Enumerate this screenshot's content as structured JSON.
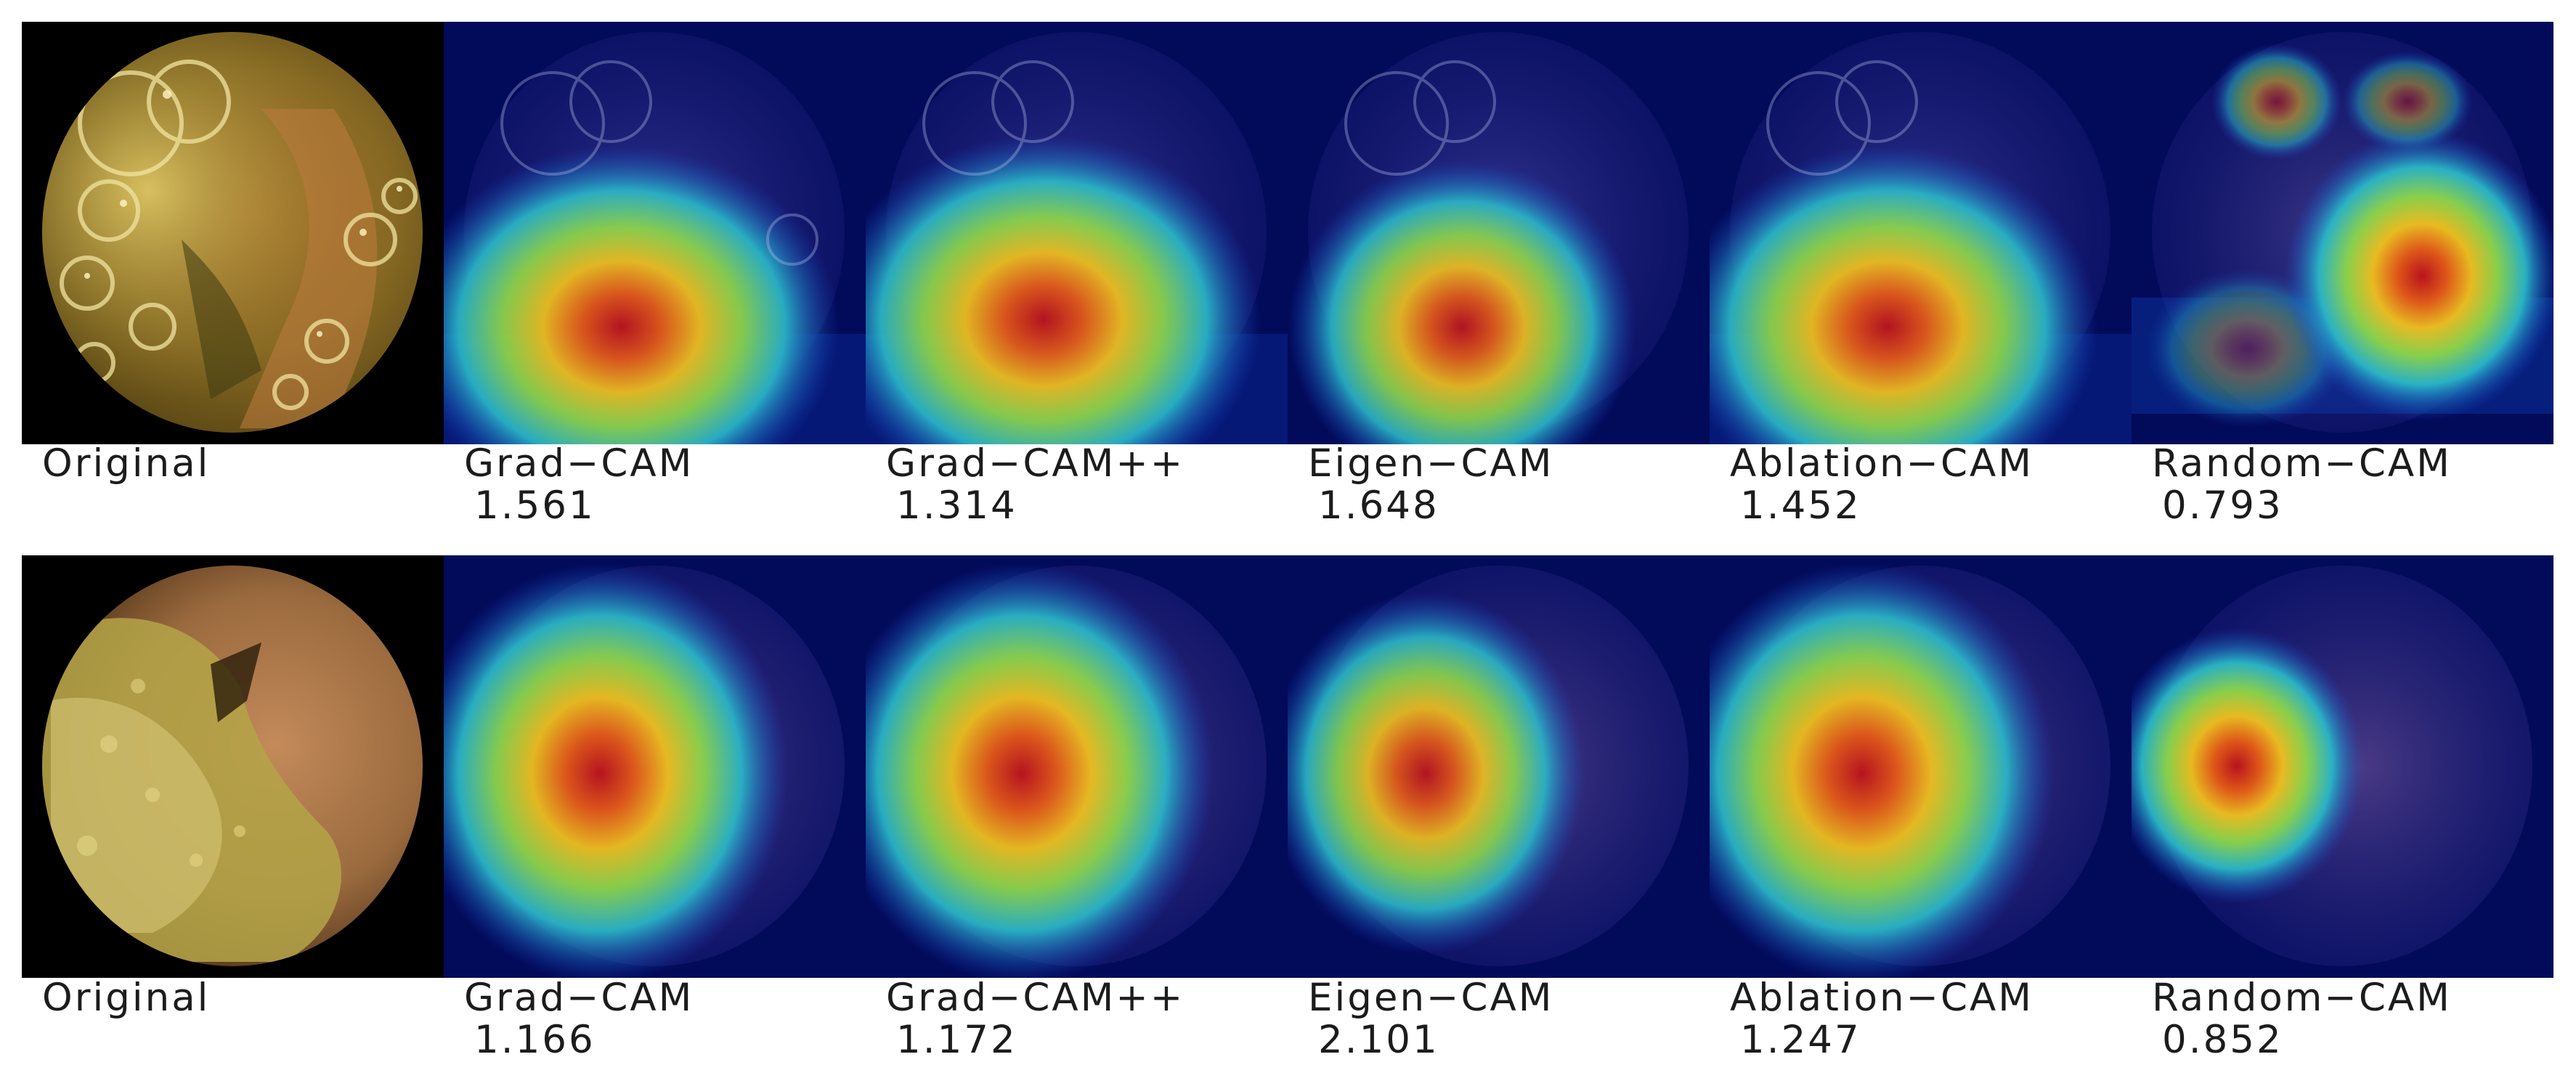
{
  "figure": {
    "rows": [
      {
        "panels": [
          {
            "label": "Original",
            "score": "",
            "kind": "original",
            "scene": "bubbles"
          },
          {
            "label": "Grad−CAM",
            "score": "1.561",
            "kind": "heatmap",
            "scene": "bubbles"
          },
          {
            "label": "Grad−CAM++",
            "score": "1.314",
            "kind": "heatmap",
            "scene": "bubbles"
          },
          {
            "label": "Eigen−CAM",
            "score": "1.648",
            "kind": "heatmap",
            "scene": "bubbles"
          },
          {
            "label": "Ablation−CAM",
            "score": "1.452",
            "kind": "heatmap",
            "scene": "bubbles"
          },
          {
            "label": "Random−CAM",
            "score": "0.793",
            "kind": "heatmap",
            "scene": "bubbles"
          }
        ]
      },
      {
        "panels": [
          {
            "label": "Original",
            "score": "",
            "kind": "original",
            "scene": "debris"
          },
          {
            "label": "Grad−CAM",
            "score": "1.166",
            "kind": "heatmap",
            "scene": "debris"
          },
          {
            "label": "Grad−CAM++",
            "score": "1.172",
            "kind": "heatmap",
            "scene": "debris"
          },
          {
            "label": "Eigen−CAM",
            "score": "2.101",
            "kind": "heatmap",
            "scene": "debris"
          },
          {
            "label": "Ablation−CAM",
            "score": "1.247",
            "kind": "heatmap",
            "scene": "debris"
          },
          {
            "label": "Random−CAM",
            "score": "0.852",
            "kind": "heatmap",
            "scene": "debris"
          }
        ]
      }
    ]
  },
  "colors": {
    "background": "#ffffff",
    "heatmap_base": "#020a5a",
    "heatmap_hot": "#d4141c",
    "text": "#1c1c1c"
  }
}
